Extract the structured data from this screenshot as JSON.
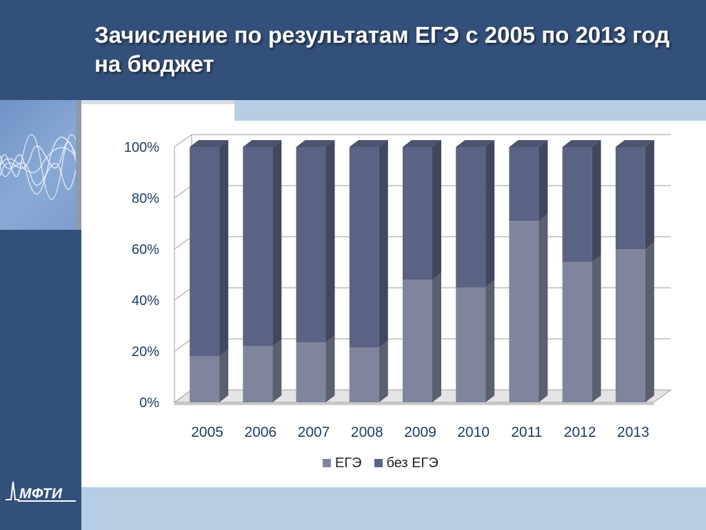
{
  "header": {
    "title": "Зачисление по результатам ЕГЭ с 2005 по 2013 год на бюджет"
  },
  "logo": {
    "text": "МФТИ"
  },
  "colors": {
    "header_bg": "#33507a",
    "strip": "#b7cde4",
    "ege": "#7f859c",
    "no_ege": "#5a6383"
  },
  "chart_data": {
    "type": "bar",
    "stacked": true,
    "percent_stacked": true,
    "three_d": true,
    "categories": [
      "2005",
      "2006",
      "2007",
      "2008",
      "2009",
      "2010",
      "2011",
      "2012",
      "2013"
    ],
    "series": [
      {
        "name": "ЕГЭ",
        "values": [
          18,
          22,
          23.5,
          21.5,
          48,
          45,
          71,
          55,
          60
        ],
        "color": "#7f859c"
      },
      {
        "name": "без ЕГЭ",
        "values": [
          82,
          78,
          76.5,
          78.5,
          52,
          55,
          29,
          45,
          40
        ],
        "color": "#5a6383"
      }
    ],
    "y_ticks": [
      "0%",
      "20%",
      "40%",
      "60%",
      "80%",
      "100%"
    ],
    "ylim": [
      0,
      100
    ],
    "grid": true,
    "legend_position": "bottom"
  }
}
